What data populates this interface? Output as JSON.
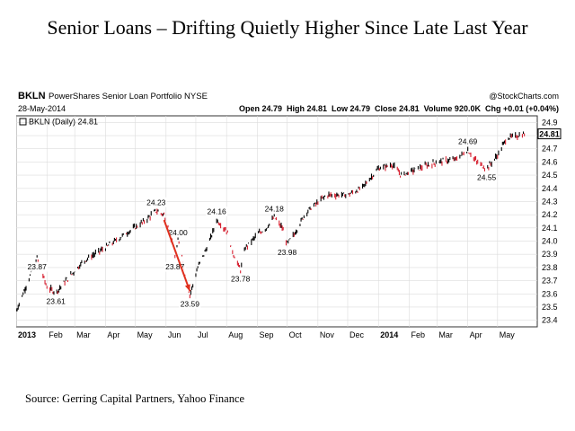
{
  "title": "Senior Loans – Drifting Quietly Higher Since Late Last Year",
  "source": "Source: Gerring Capital Partners, Yahoo Finance",
  "chart_header": {
    "symbol": "BKLN",
    "name": "PowerShares Senior Loan Portfolio NYSE",
    "watermark": "@StockCharts.com",
    "date": "28-May-2014",
    "ohlc_line": "Open 24.79  High 24.81  Low 24.79  Close 24.81  Volume 920.0K  Chg +0.01 (+0.04%)",
    "legend": "BKLN (Daily) 24.81",
    "last_price_label": "24.81"
  },
  "chart_data": {
    "type": "ohlc",
    "series": [
      {
        "name": "BKLN (Daily)",
        "color_up": "#000000",
        "color_down": "#d62030"
      }
    ],
    "x": [
      "2013-01-01",
      "2013-01-22",
      "2013-02-01",
      "2013-02-10",
      "2013-02-20",
      "2013-03-10",
      "2013-04-01",
      "2013-04-20",
      "2013-05-10",
      "2013-05-22",
      "2013-05-30",
      "2013-06-04",
      "2013-06-10",
      "2013-06-13",
      "2013-06-17",
      "2013-06-20",
      "2013-06-25",
      "2013-07-03",
      "2013-07-15",
      "2013-07-22",
      "2013-08-01",
      "2013-08-08",
      "2013-08-15",
      "2013-08-20",
      "2013-09-01",
      "2013-09-10",
      "2013-09-18",
      "2013-09-26",
      "2013-10-01",
      "2013-10-08",
      "2013-10-20",
      "2013-11-10",
      "2013-12-01",
      "2013-12-15",
      "2014-01-01",
      "2014-01-15",
      "2014-01-24",
      "2014-02-10",
      "2014-03-01",
      "2014-03-20",
      "2014-04-01",
      "2014-04-10",
      "2014-04-20",
      "2014-05-01",
      "2014-05-10",
      "2014-05-28"
    ],
    "y": [
      23.47,
      23.87,
      23.65,
      23.61,
      23.7,
      23.85,
      23.95,
      24.05,
      24.15,
      24.23,
      24.2,
      24.1,
      23.87,
      24.0,
      23.9,
      23.75,
      23.59,
      23.8,
      24.0,
      24.16,
      24.08,
      23.9,
      23.78,
      23.95,
      24.05,
      24.1,
      24.18,
      24.1,
      23.98,
      24.05,
      24.22,
      24.35,
      24.35,
      24.4,
      24.55,
      24.58,
      24.5,
      24.55,
      24.6,
      24.62,
      24.69,
      24.6,
      24.55,
      24.65,
      24.78,
      24.81
    ],
    "annotations": [
      {
        "label": "23.87",
        "x": "2013-01-22",
        "y": 23.87
      },
      {
        "label": "23.61",
        "x": "2013-02-10",
        "y": 23.61
      },
      {
        "label": "24.23",
        "x": "2013-05-22",
        "y": 24.23
      },
      {
        "label": "24.00",
        "x": "2013-06-13",
        "y": 24.0
      },
      {
        "label": "23.87",
        "x": "2013-06-10",
        "y": 23.87
      },
      {
        "label": "23.59",
        "x": "2013-06-25",
        "y": 23.59
      },
      {
        "label": "24.16",
        "x": "2013-07-22",
        "y": 24.16
      },
      {
        "label": "23.78",
        "x": "2013-08-15",
        "y": 23.78
      },
      {
        "label": "24.18",
        "x": "2013-09-18",
        "y": 24.18
      },
      {
        "label": "23.98",
        "x": "2013-10-01",
        "y": 23.98
      },
      {
        "label": "24.69",
        "x": "2014-04-01",
        "y": 24.69
      },
      {
        "label": "24.55",
        "x": "2014-04-20",
        "y": 24.55
      }
    ],
    "arrow": {
      "from": {
        "x": "2013-05-30",
        "y": 24.16
      },
      "to": {
        "x": "2013-06-25",
        "y": 23.62
      },
      "color": "#e0301e"
    },
    "x_ticks": [
      "2013",
      "Feb",
      "Mar",
      "Apr",
      "May",
      "Jun",
      "Jul",
      "Aug",
      "Sep",
      "Oct",
      "Nov",
      "Dec",
      "2014",
      "Feb",
      "Mar",
      "Apr",
      "May"
    ],
    "x_tick_dates": [
      "2013-01-01",
      "2013-02-01",
      "2013-03-01",
      "2013-04-01",
      "2013-05-01",
      "2013-06-01",
      "2013-07-01",
      "2013-08-01",
      "2013-09-01",
      "2013-10-01",
      "2013-11-01",
      "2013-12-01",
      "2014-01-01",
      "2014-02-01",
      "2014-03-01",
      "2014-04-01",
      "2014-05-01"
    ],
    "y_ticks": [
      "23.4",
      "23.5",
      "23.6",
      "23.7",
      "23.8",
      "23.9",
      "24.0",
      "24.1",
      "24.2",
      "24.3",
      "24.4",
      "24.5",
      "24.6",
      "24.7",
      "24.8",
      "24.9"
    ],
    "ylim": [
      23.35,
      24.95
    ],
    "xlim": [
      "2013-01-01",
      "2014-06-10"
    ],
    "grid": true,
    "y_axis_side": "right"
  }
}
